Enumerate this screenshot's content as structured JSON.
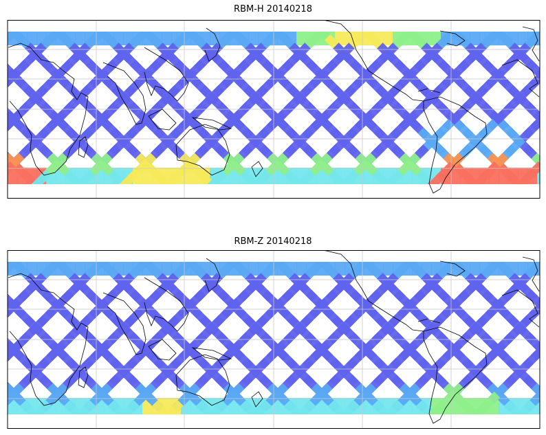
{
  "panels": [
    {
      "title": "RBM-H 20140218",
      "variant": "h"
    },
    {
      "title": "RBM-Z 20140218",
      "variant": "z"
    }
  ],
  "colors": {
    "track_low": "#5f63ee",
    "track_mid": "#5aa9f5",
    "track_cyan": "#74e6ee",
    "track_green": "#8ef08a",
    "track_yellow": "#f6ea5a",
    "track_orange": "#fb9450",
    "track_red": "#fa7060",
    "coast": "#000000",
    "grid": "#c8c8c8"
  },
  "map": {
    "projection": "cylindrical, centered on the Pacific",
    "gridlines": true,
    "coastlines": true
  }
}
